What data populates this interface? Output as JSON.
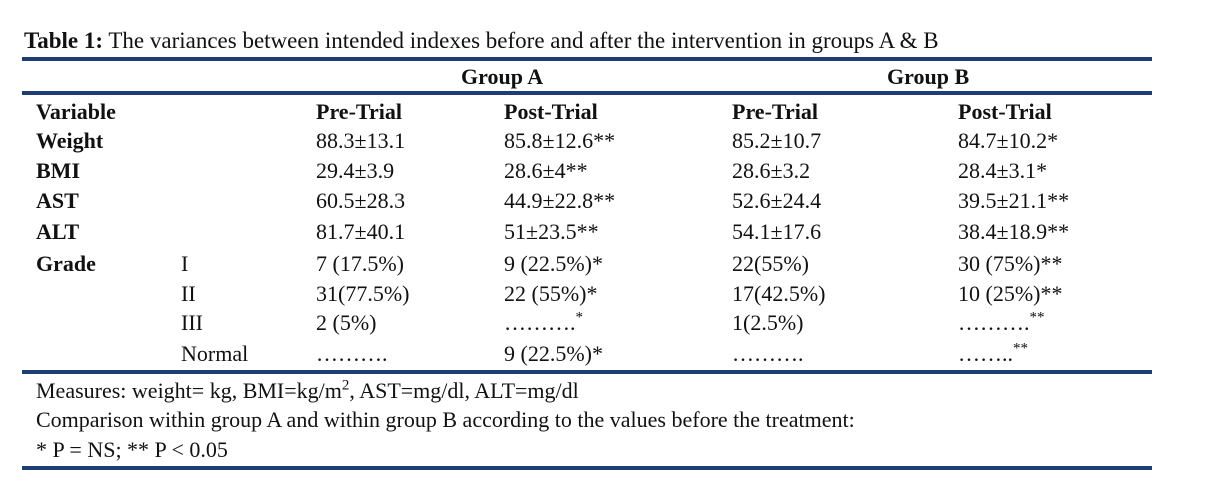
{
  "caption": {
    "label": "Table 1:",
    "text": " The variances between intended indexes before and after the intervention in groups A & B"
  },
  "groups": [
    "Group A",
    "Group B"
  ],
  "headers": {
    "variable": "Variable",
    "a_pre": "Pre-Trial",
    "a_post": "Post-Trial",
    "b_pre": "Pre-Trial",
    "b_post": "Post-Trial"
  },
  "rows": [
    {
      "label": "Weight",
      "sub": "",
      "a_pre": "88.3±13.1",
      "a_post": "85.8±12.6**",
      "b_pre": "85.2±10.7",
      "b_post": "84.7±10.2*"
    },
    {
      "label": "BMI",
      "sub": "",
      "a_pre": "29.4±3.9",
      "a_post": "28.6±4**",
      "b_pre": "28.6±3.2",
      "b_post": "28.4±3.1*"
    },
    {
      "label": "AST",
      "sub": "",
      "a_pre": "60.5±28.3",
      "a_post": "44.9±22.8**",
      "b_pre": "52.6±24.4",
      "b_post": "39.5±21.1**"
    },
    {
      "label": "ALT",
      "sub": "",
      "a_pre": "81.7±40.1",
      "a_post": "51±23.5**",
      "b_pre": "54.1±17.6",
      "b_post": "38.4±18.9**"
    },
    {
      "label": "Grade",
      "sub": "I",
      "a_pre": "7 (17.5%)",
      "a_post": "9 (22.5%)*",
      "b_pre": "22(55%)",
      "b_post": "30 (75%)**"
    },
    {
      "label": "",
      "sub": "II",
      "a_pre": "31(77.5%)",
      "a_post": "22 (55%)*",
      "b_pre": "17(42.5%)",
      "b_post": "10 (25%)**"
    },
    {
      "label": "",
      "sub": "III",
      "a_pre": "2 (5%)",
      "a_post": "……….",
      "a_post_sup": "*",
      "b_pre": "1(2.5%)",
      "b_post": "……….",
      "b_post_sup": "**"
    },
    {
      "label": "",
      "sub": "Normal",
      "a_pre": "……….",
      "a_post": "9 (22.5%)*",
      "b_pre": "……….",
      "b_post": "……..",
      "b_post_sup": "**"
    }
  ],
  "notes": {
    "line1_pre": "Measures: weight= kg, BMI=kg/m",
    "line1_sup": "2",
    "line1_post": ", AST=mg/dl, ALT=mg/dl",
    "line2": "Comparison within group A and within group B according to the values before the treatment:",
    "line3": "* P = NS; ** P < 0.05"
  },
  "colors": {
    "rule": "#1f3d73",
    "text": "#111111"
  }
}
